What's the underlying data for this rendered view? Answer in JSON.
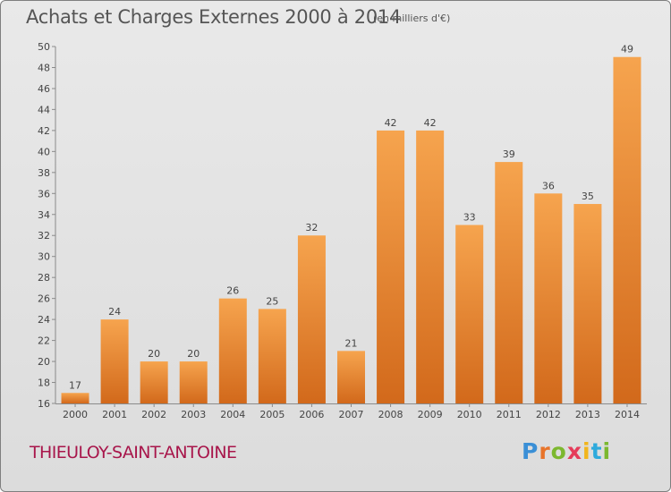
{
  "header": {
    "title": "Achats et Charges Externes 2000 à 2014",
    "unit": "(en milliers d'€)"
  },
  "footer": {
    "commune": "THIEULOY-SAINT-ANTOINE",
    "logo": "Proxiti"
  },
  "colors": {
    "bar_top": "#f6a44e",
    "bar_bottom": "#d2691b",
    "commune": "#a8164b"
  },
  "chart_data": {
    "type": "bar",
    "title": "Achats et Charges Externes 2000 à 2014",
    "subtitle": "(en milliers d'€)",
    "xlabel": "",
    "ylabel": "",
    "categories": [
      "2000",
      "2001",
      "2002",
      "2003",
      "2004",
      "2005",
      "2006",
      "2007",
      "2008",
      "2009",
      "2010",
      "2011",
      "2012",
      "2013",
      "2014"
    ],
    "values": [
      17,
      24,
      20,
      20,
      26,
      25,
      32,
      21,
      42,
      42,
      33,
      39,
      36,
      35,
      49
    ],
    "ylim": [
      16,
      50
    ],
    "yticks": [
      16,
      18,
      20,
      22,
      24,
      26,
      28,
      30,
      32,
      34,
      36,
      38,
      40,
      42,
      44,
      46,
      48,
      50
    ],
    "grid": false,
    "legend": "none"
  }
}
